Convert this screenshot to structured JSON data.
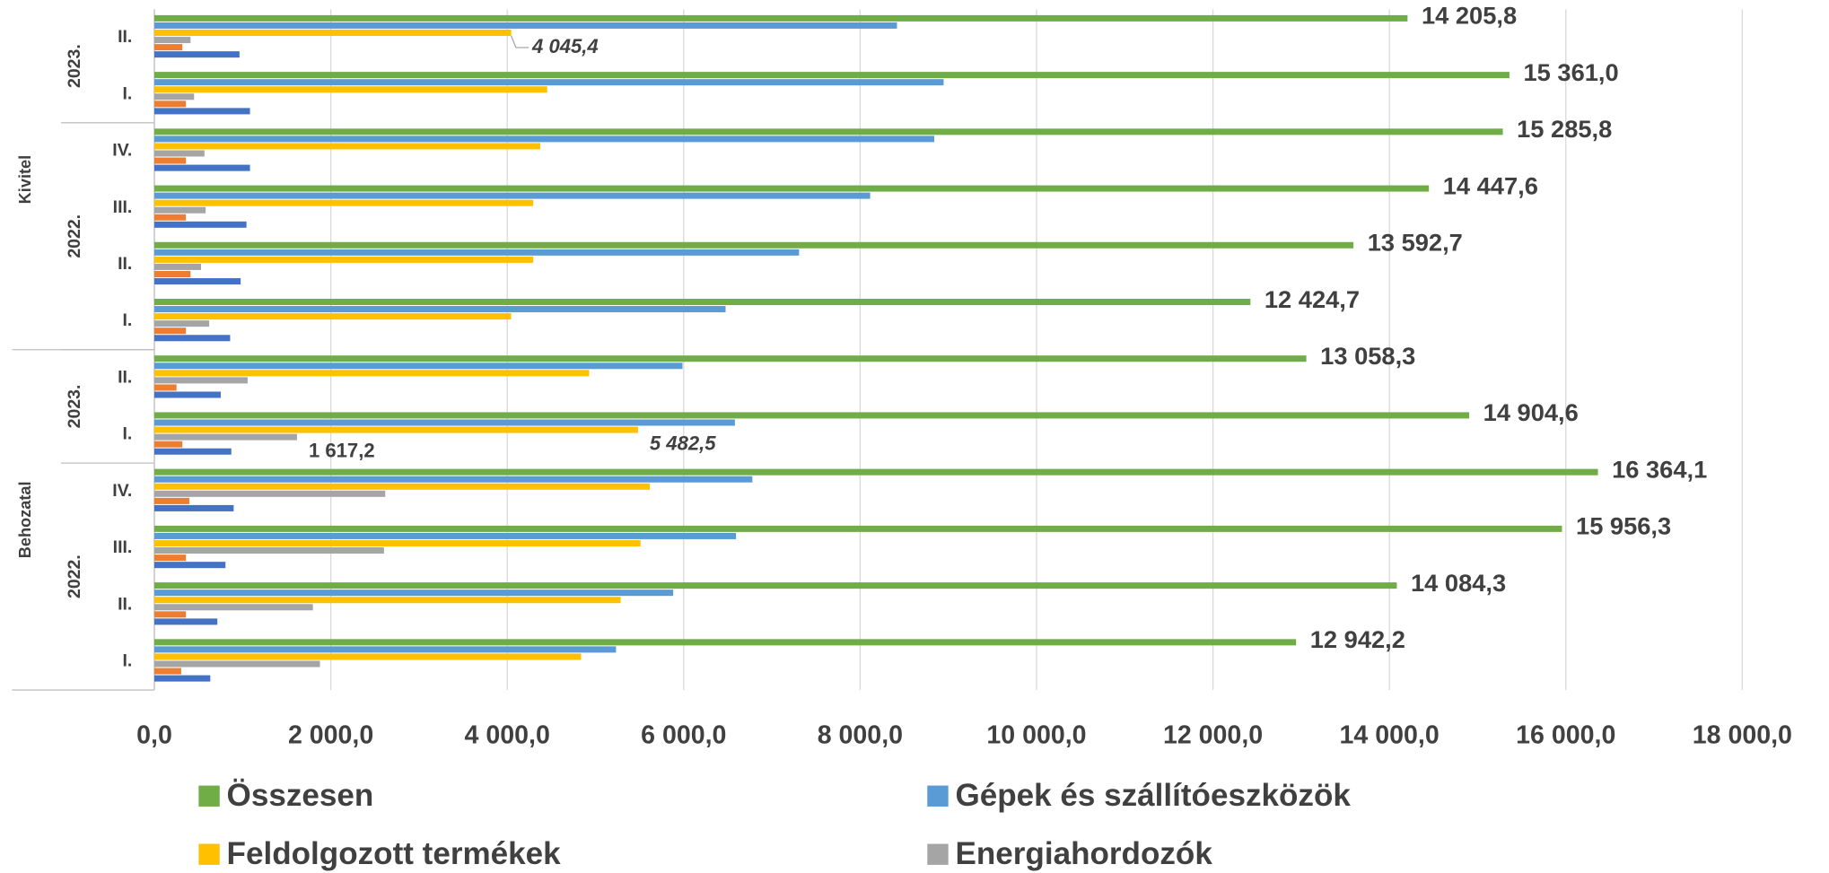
{
  "chart_data": {
    "type": "bar",
    "orientation": "horizontal",
    "categories": [
      "II.",
      "I.",
      "IV.",
      "III.",
      "II.",
      "I.",
      "II.",
      "I.",
      "IV.",
      "III.",
      "II.",
      "I."
    ],
    "category_years": [
      "2023.",
      "2023.",
      "2022.",
      "2022.",
      "2022.",
      "2022.",
      "2023.",
      "2023.",
      "2022.",
      "2022.",
      "2022.",
      "2022."
    ],
    "category_flows": [
      "Kivitel",
      "Kivitel",
      "Kivitel",
      "Kivitel",
      "Kivitel",
      "Kivitel",
      "Behozatal",
      "Behozatal",
      "Behozatal",
      "Behozatal",
      "Behozatal",
      "Behozatal"
    ],
    "series": [
      {
        "name": "Összesen",
        "color": "#70ad47",
        "values": [
          14205.8,
          15361.0,
          15285.8,
          14447.6,
          13592.7,
          12424.7,
          13058.3,
          14904.6,
          16364.1,
          15956.3,
          14084.3,
          12942.2
        ],
        "value_labels": [
          "14 205,8",
          "15 361,0",
          "15 285,8",
          "14 447,6",
          "13 592,7",
          "12 424,7",
          "13 058,3",
          "14 904,6",
          "16 364,1",
          "15 956,3",
          "14 084,3",
          "12 942,2"
        ],
        "value_label_colors": [
          "#ff0000",
          "#404040",
          "#404040",
          "#404040",
          "#404040",
          "#404040",
          "#ff0000",
          "#000000",
          "#404040",
          "#404040",
          "#404040",
          "#404040"
        ]
      },
      {
        "name": "Gépek és szállítóeszközök",
        "color": "#5b9bd5",
        "values": [
          8418,
          8947,
          8841,
          8114,
          7308,
          6475,
          5987,
          6581,
          6779,
          6594,
          5881,
          5233
        ]
      },
      {
        "name": "Feldolgozott termékek",
        "color": "#ffc000",
        "values": [
          4045.4,
          4453,
          4374,
          4295,
          4295,
          4044,
          4929,
          5482.5,
          5617,
          5511,
          5286,
          4837
        ],
        "value_labels": [
          "4 045,4",
          null,
          null,
          null,
          null,
          null,
          null,
          "5 482,5",
          null,
          null,
          null,
          null
        ],
        "value_label_colors": [
          "#f0b400",
          null,
          null,
          null,
          null,
          null,
          null,
          "#f0b400",
          null,
          null,
          null,
          null
        ]
      },
      {
        "name": "Energiahordozók",
        "color": "#a5a5a5",
        "values": [
          410,
          450,
          568,
          581,
          529,
          621,
          1057,
          1617.2,
          2617,
          2603,
          1797,
          1877
        ],
        "value_labels": [
          null,
          null,
          null,
          null,
          null,
          null,
          null,
          "1 617,2",
          null,
          null,
          null,
          null
        ],
        "value_label_colors": [
          null,
          null,
          null,
          null,
          null,
          null,
          null,
          "#404040",
          null,
          null,
          null,
          null
        ]
      },
      {
        "color": "#ed7d31",
        "values": [
          317,
          357,
          357,
          357,
          410,
          357,
          251,
          317,
          396,
          357,
          357,
          304
        ]
      },
      {
        "color": "#4472c4",
        "values": [
          965,
          1084,
          1084,
          1044,
          978,
          859,
          753,
          872,
          899,
          806,
          714,
          634
        ]
      }
    ],
    "xlim": [
      0,
      18000
    ],
    "xticks": [
      {
        "value": 0,
        "label": "0,0"
      },
      {
        "value": 2000,
        "label": "2 000,0"
      },
      {
        "value": 4000,
        "label": "4 000,0"
      },
      {
        "value": 6000,
        "label": "6 000,0"
      },
      {
        "value": 8000,
        "label": "8 000,0"
      },
      {
        "value": 10000,
        "label": "10 000,0"
      },
      {
        "value": 12000,
        "label": "12 000,0"
      },
      {
        "value": 14000,
        "label": "14 000,0"
      },
      {
        "value": 16000,
        "label": "16 000,0"
      },
      {
        "value": 18000,
        "label": "18 000,0"
      }
    ],
    "grid": true,
    "legend": "bottom"
  }
}
